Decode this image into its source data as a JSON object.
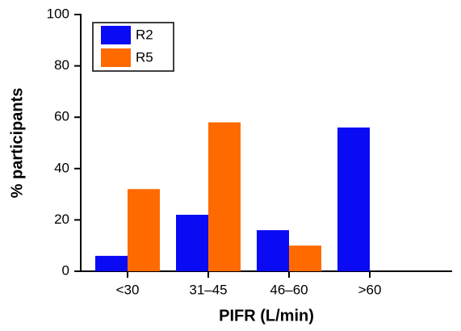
{
  "chart_data": {
    "type": "bar",
    "x_label": "PIFR (L/min)",
    "y_label": "% participants",
    "categories": [
      "<30",
      "31–45",
      "46–60",
      ">60"
    ],
    "series": [
      {
        "name": "R2",
        "color": "#0a0af5",
        "values": [
          6,
          22,
          16,
          56
        ]
      },
      {
        "name": "R5",
        "color": "#ff6a00",
        "values": [
          32,
          58,
          10,
          0
        ]
      }
    ],
    "ylim": [
      0,
      100
    ],
    "yticks": [
      0,
      20,
      40,
      60,
      80,
      100
    ],
    "legend": "upper-left"
  }
}
